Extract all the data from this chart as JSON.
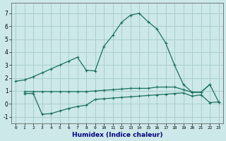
{
  "xlabel": "Humidex (Indice chaleur)",
  "bg_color": "#cce8e8",
  "grid_color": "#aacece",
  "line_color": "#1a7060",
  "ylim": [
    -1.5,
    7.8
  ],
  "xlim": [
    -0.5,
    23.5
  ],
  "main_x": [
    0,
    1,
    2,
    3,
    4,
    5,
    6,
    7,
    8,
    9,
    10,
    11,
    12,
    13,
    14,
    15,
    16,
    17,
    18,
    19,
    20,
    21,
    22
  ],
  "main_y": [
    1.75,
    1.85,
    2.1,
    2.4,
    2.7,
    3.0,
    3.3,
    3.6,
    2.6,
    2.55,
    4.45,
    5.3,
    6.3,
    6.85,
    7.0,
    6.35,
    5.8,
    4.7,
    3.0,
    1.5,
    0.9,
    0.9,
    1.5
  ],
  "bot_x": [
    1,
    2,
    3,
    4,
    5,
    6,
    7,
    8,
    9,
    10,
    11,
    12,
    13,
    14,
    15,
    16,
    17,
    18,
    19,
    20,
    21,
    22,
    23
  ],
  "bot_y": [
    0.8,
    0.8,
    -0.8,
    -0.75,
    -0.55,
    -0.35,
    -0.2,
    -0.1,
    0.35,
    0.4,
    0.45,
    0.5,
    0.55,
    0.6,
    0.65,
    0.7,
    0.75,
    0.8,
    0.85,
    0.6,
    0.7,
    0.1,
    0.15
  ],
  "mid_x": [
    1,
    2,
    3,
    4,
    5,
    6,
    7,
    8,
    9,
    10,
    11,
    12,
    13,
    14,
    15,
    16,
    17,
    18,
    19,
    20,
    21,
    22,
    23
  ],
  "mid_y": [
    0.95,
    0.95,
    0.95,
    0.95,
    0.95,
    0.95,
    0.95,
    0.95,
    1.0,
    1.05,
    1.1,
    1.15,
    1.2,
    1.2,
    1.2,
    1.3,
    1.3,
    1.3,
    1.1,
    0.9,
    0.9,
    1.5,
    0.15
  ]
}
